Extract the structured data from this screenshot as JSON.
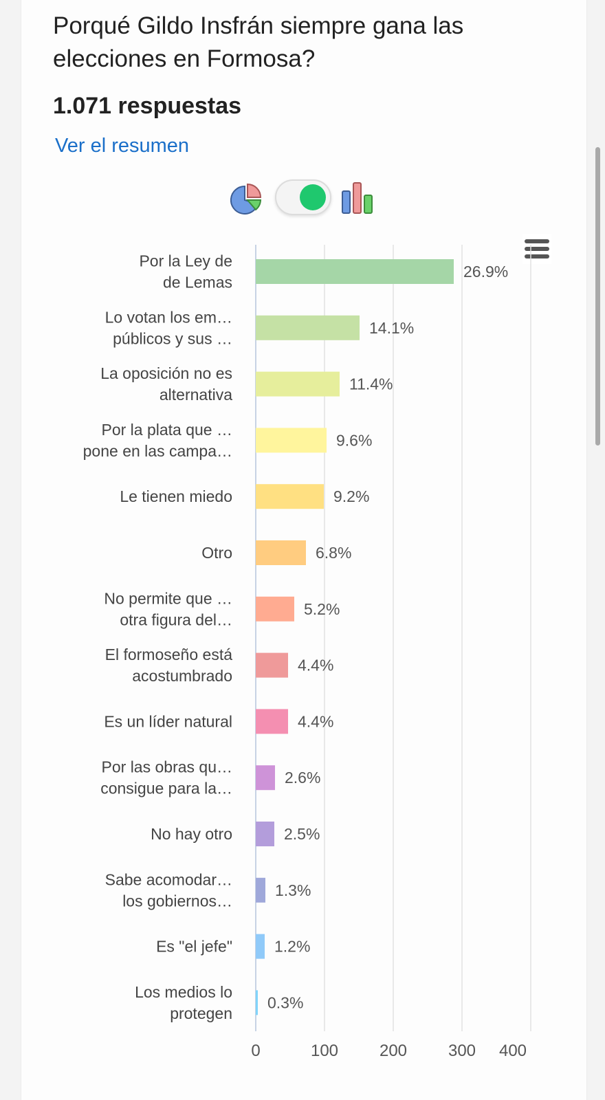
{
  "question": "Porqué Gildo Insfrán siempre gana las elecciones en Formosa?",
  "responses": "1.071 respuestas",
  "summary_link": "Ver el resumen",
  "colors": {
    "link": "#1a6fc9",
    "toggle_on": "#1fc86e"
  },
  "icons": {
    "pie": "pie-chart-icon",
    "toggle": "chart-type-toggle",
    "bar": "bar-chart-icon",
    "menu": "hamburger-menu-icon"
  },
  "chart_data": {
    "type": "bar",
    "orientation": "horizontal",
    "xlim": [
      0,
      400
    ],
    "xticks": [
      0,
      100,
      200,
      300,
      400
    ],
    "grid": true,
    "categories": [
      [
        "Por la Ley de",
        "de Lemas"
      ],
      [
        "Lo votan los em…",
        "públicos y sus …"
      ],
      [
        "La oposición no es",
        "alternativa"
      ],
      [
        "Por la plata que …",
        "pone en las campa…"
      ],
      [
        "Le tienen miedo"
      ],
      [
        "Otro"
      ],
      [
        "No permite que …",
        "otra figura del…"
      ],
      [
        "El formoseño está",
        "acostumbrado"
      ],
      [
        "Es un líder natural"
      ],
      [
        "Por las obras qu…",
        "consigue para la…"
      ],
      [
        "No hay otro"
      ],
      [
        "Sabe acomodar…",
        "los gobiernos…"
      ],
      [
        "Es \"el jefe\""
      ],
      [
        "Los medios lo",
        "protegen"
      ]
    ],
    "values": [
      288,
      151,
      122,
      103,
      99,
      73,
      56,
      47,
      47,
      28,
      27,
      14,
      13,
      3
    ],
    "percent_labels": [
      "26.9%",
      "14.1%",
      "11.4%",
      "9.6%",
      "9.2%",
      "6.8%",
      "5.2%",
      "4.4%",
      "4.4%",
      "2.6%",
      "2.5%",
      "1.3%",
      "1.2%",
      "0.3%"
    ],
    "colors": [
      "#a5d6a7",
      "#c5e1a5",
      "#e6ee9c",
      "#fff59d",
      "#ffe082",
      "#ffcc80",
      "#ffab91",
      "#ef9a9a",
      "#f48fb1",
      "#ce93d8",
      "#b39ddb",
      "#9fa8da",
      "#90caf9",
      "#81d4fa"
    ]
  }
}
